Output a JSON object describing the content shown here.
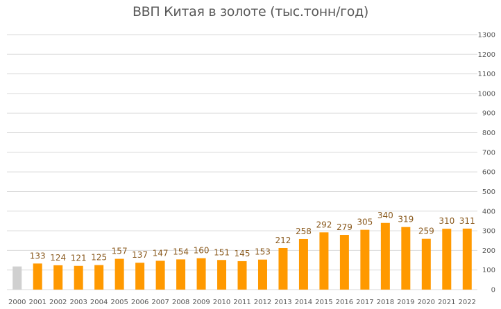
{
  "chart_data": {
    "type": "bar",
    "title": "ВВП Китая в золоте (тыс.тонн/год)",
    "xlabel": "",
    "ylabel": "",
    "ylim": [
      0,
      1300
    ],
    "y_ticks": [
      0,
      100,
      200,
      300,
      400,
      500,
      600,
      700,
      800,
      900,
      1000,
      1100,
      1200,
      1300
    ],
    "y_axis_position": "right",
    "grid": true,
    "legend": "none",
    "categories": [
      "2000",
      "2001",
      "2002",
      "2003",
      "2004",
      "2005",
      "2006",
      "2007",
      "2008",
      "2009",
      "2010",
      "2011",
      "2012",
      "2013",
      "2014",
      "2015",
      "2016",
      "2017",
      "2018",
      "2019",
      "2020",
      "2021",
      "2022"
    ],
    "values": [
      118,
      133,
      124,
      121,
      125,
      157,
      137,
      147,
      154,
      160,
      151,
      145,
      153,
      212,
      258,
      292,
      279,
      305,
      340,
      319,
      259,
      310,
      311
    ],
    "data_labels": [
      "",
      "133",
      "124",
      "121",
      "125",
      "157",
      "137",
      "147",
      "154",
      "160",
      "151",
      "145",
      "153",
      "212",
      "258",
      "292",
      "279",
      "305",
      "340",
      "319",
      "259",
      "310",
      "311"
    ],
    "colors": {
      "bar": "#ff9900",
      "first_bar": "#d0d0d0",
      "grid": "#d9d9d9",
      "label": "#8a5a1e",
      "tick": "#595959"
    }
  }
}
